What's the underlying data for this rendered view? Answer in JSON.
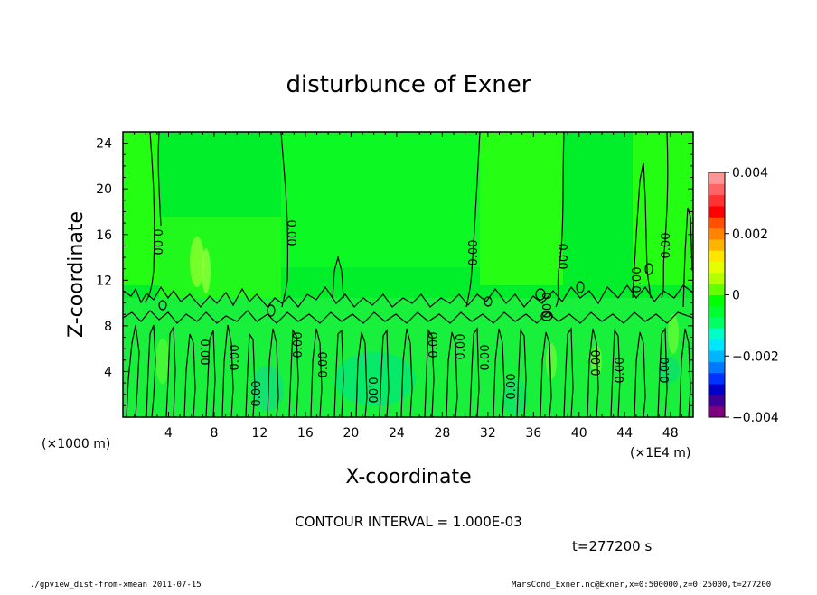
{
  "chart_data": {
    "type": "heatmap",
    "title": "disturbunce of Exner",
    "xlabel": "X-coordinate",
    "ylabel": "Z-coordinate",
    "x_unit_label": "(×1E4 m)",
    "y_unit_label": "(×1000 m)",
    "x_ticks": [
      "4",
      "8",
      "12",
      "16",
      "20",
      "24",
      "28",
      "32",
      "36",
      "40",
      "44",
      "48"
    ],
    "y_ticks": [
      "4",
      "8",
      "12",
      "16",
      "20",
      "24"
    ],
    "xlim": [
      0,
      50
    ],
    "ylim": [
      0,
      25
    ],
    "colorbar": {
      "range": [
        -0.004,
        0.004
      ],
      "tick_labels": [
        "0.004",
        "0.002",
        "0",
        "−0.002",
        "−0.004"
      ],
      "colors": [
        "#7f007f",
        "#3c0096",
        "#0000c8",
        "#0032ff",
        "#0078ff",
        "#00b4ff",
        "#00e6ff",
        "#00ffc8",
        "#00ff64",
        "#00ff32",
        "#00ff00",
        "#64ff00",
        "#b4ff00",
        "#e6ff00",
        "#ffe600",
        "#ffb400",
        "#ff8200",
        "#ff5000",
        "#ff0000",
        "#ff3232",
        "#ff6464",
        "#ff9696"
      ]
    },
    "contour_labels": [
      "0.00"
    ],
    "contour_interval": "CONTOUR INTERVAL = 1.000E-03",
    "time_label": "t=277200 s"
  },
  "footer": {
    "left": "./gpview_dist-from-xmean  2011-07-15",
    "right": "MarsCond_Exner.nc@Exner,x=0:500000,z=0:25000,t=277200"
  }
}
